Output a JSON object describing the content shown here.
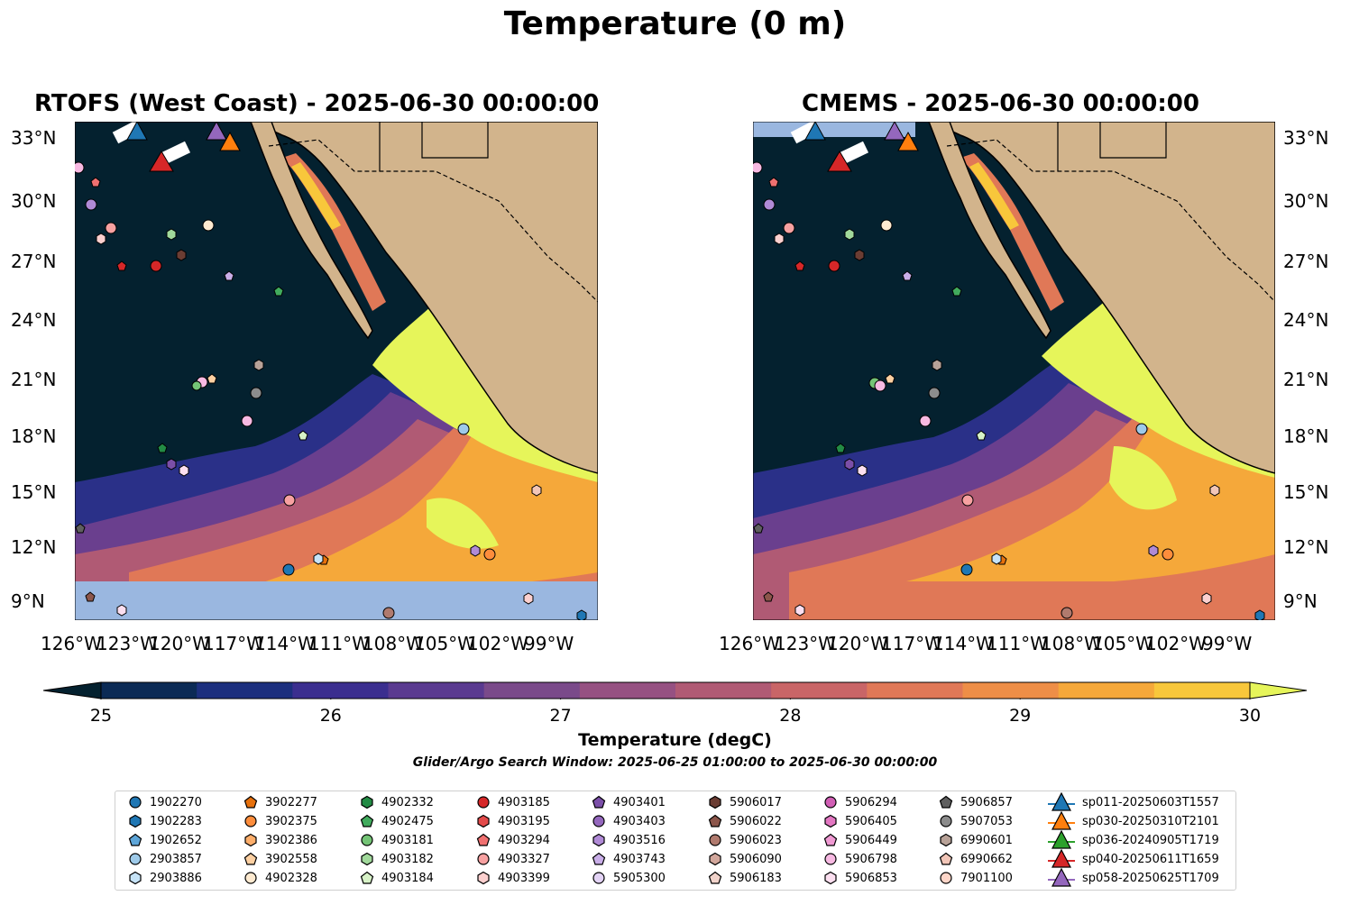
{
  "figure": {
    "title": "Temperature (0 m)",
    "colorbar_label": "Temperature (degC)",
    "colorbar_ticks": [
      "25",
      "26",
      "27",
      "28",
      "29",
      "30"
    ],
    "colorbar_colors": [
      "#0b2a55",
      "#1c2f7e",
      "#3b2e8f",
      "#5a3a90",
      "#7a4a8a",
      "#965182",
      "#b05a74",
      "#c96567",
      "#e07857",
      "#ee8e47",
      "#f5a83a",
      "#f8c73b"
    ],
    "window_note": "Glider/Argo Search Window: 2025-06-25 01:00:00 to 2025-06-30 00:00:00"
  },
  "maps": [
    {
      "title": "RTOFS (West Coast) - 2025-06-30 00:00:00",
      "lat_side": "left"
    },
    {
      "title": "CMEMS - 2025-06-30 00:00:00",
      "lat_side": "right"
    }
  ],
  "axes": {
    "lat_labels": [
      "33°N",
      "30°N",
      "27°N",
      "24°N",
      "21°N",
      "18°N",
      "15°N",
      "12°N",
      "9°N"
    ],
    "lon_labels": [
      "126°W",
      "123°W",
      "120°W",
      "117°W",
      "114°W",
      "111°W",
      "108°W",
      "105°W",
      "102°W",
      "99°W"
    ]
  },
  "colors": {
    "deep_water": "#04212f",
    "land": "#d2b48c",
    "nodata": "#9ab7e0",
    "warm_yellow": "#e6f55a"
  },
  "legend": {
    "columns": [
      [
        {
          "label": "1902270",
          "marker": "circle",
          "color": "#1f77b4"
        },
        {
          "label": "1902283",
          "marker": "hexagon",
          "color": "#1f77b4"
        },
        {
          "label": "1902652",
          "marker": "pentagon",
          "color": "#5da5d8"
        },
        {
          "label": "2903857",
          "marker": "circle",
          "color": "#9ecae9"
        },
        {
          "label": "2903886",
          "marker": "hexagon",
          "color": "#c6e3f7"
        }
      ],
      [
        {
          "label": "3902277",
          "marker": "pentagon",
          "color": "#e6700c"
        },
        {
          "label": "3902375",
          "marker": "circle",
          "color": "#fd8d3c"
        },
        {
          "label": "3902386",
          "marker": "hexagon",
          "color": "#fdae6b"
        },
        {
          "label": "3902558",
          "marker": "pentagon",
          "color": "#fdd0a2"
        },
        {
          "label": "4902328",
          "marker": "circle",
          "color": "#feead0"
        }
      ],
      [
        {
          "label": "4902332",
          "marker": "hexagon",
          "color": "#238b45"
        },
        {
          "label": "4902475",
          "marker": "pentagon",
          "color": "#41ab5d"
        },
        {
          "label": "4903181",
          "marker": "circle",
          "color": "#74c476"
        },
        {
          "label": "4903182",
          "marker": "hexagon",
          "color": "#a1d99b"
        },
        {
          "label": "4903184",
          "marker": "pentagon",
          "color": "#d7f2c7"
        }
      ],
      [
        {
          "label": "4903185",
          "marker": "circle",
          "color": "#d62728"
        },
        {
          "label": "4903195",
          "marker": "hexagon",
          "color": "#e34a4a"
        },
        {
          "label": "4903294",
          "marker": "pentagon",
          "color": "#f07070"
        },
        {
          "label": "4903327",
          "marker": "circle",
          "color": "#f7a1a1"
        },
        {
          "label": "4903399",
          "marker": "hexagon",
          "color": "#fcd0cf"
        }
      ],
      [
        {
          "label": "4903401",
          "marker": "pentagon",
          "color": "#7b4fa8"
        },
        {
          "label": "4903403",
          "marker": "circle",
          "color": "#9467bd"
        },
        {
          "label": "4903516",
          "marker": "hexagon",
          "color": "#b08ad6"
        },
        {
          "label": "4903743",
          "marker": "pentagon",
          "color": "#c9aee8"
        },
        {
          "label": "5905300",
          "marker": "circle",
          "color": "#e3d3f5"
        }
      ],
      [
        {
          "label": "5906017",
          "marker": "hexagon",
          "color": "#6b3d33"
        },
        {
          "label": "5906022",
          "marker": "pentagon",
          "color": "#8c564b"
        },
        {
          "label": "5906023",
          "marker": "circle",
          "color": "#b07a6e"
        },
        {
          "label": "5906090",
          "marker": "hexagon",
          "color": "#d2a79c"
        },
        {
          "label": "5906183",
          "marker": "pentagon",
          "color": "#f1d3cb"
        }
      ],
      [
        {
          "label": "5906294",
          "marker": "circle",
          "color": "#d15fb5"
        },
        {
          "label": "5906405",
          "marker": "hexagon",
          "color": "#e377c2"
        },
        {
          "label": "5906449",
          "marker": "pentagon",
          "color": "#f09ad3"
        },
        {
          "label": "5906798",
          "marker": "circle",
          "color": "#f7b9e2"
        },
        {
          "label": "5906853",
          "marker": "hexagon",
          "color": "#fcdff0"
        }
      ],
      [
        {
          "label": "5906857",
          "marker": "pentagon",
          "color": "#5f5f5f"
        },
        {
          "label": "5907053",
          "marker": "circle",
          "color": "#8c8c8c"
        },
        {
          "label": "6990601",
          "marker": "hexagon",
          "color": "#b8a298"
        },
        {
          "label": "6990662",
          "marker": "pentagon",
          "color": "#f2c6b8"
        },
        {
          "label": "7901100",
          "marker": "circle",
          "color": "#fdd5c8"
        }
      ],
      [
        {
          "label": "sp011-20250603T1557",
          "marker": "triangle",
          "color": "#1f77b4"
        },
        {
          "label": "sp030-20250310T2101",
          "marker": "triangle",
          "color": "#ff7f0e"
        },
        {
          "label": "sp036-20240905T1719",
          "marker": "triangle",
          "color": "#2ca02c"
        },
        {
          "label": "sp040-20250611T1659",
          "marker": "triangle",
          "color": "#d62728"
        },
        {
          "label": "sp058-20250625T1709",
          "marker": "triangle",
          "color": "#9467bd"
        }
      ]
    ]
  }
}
